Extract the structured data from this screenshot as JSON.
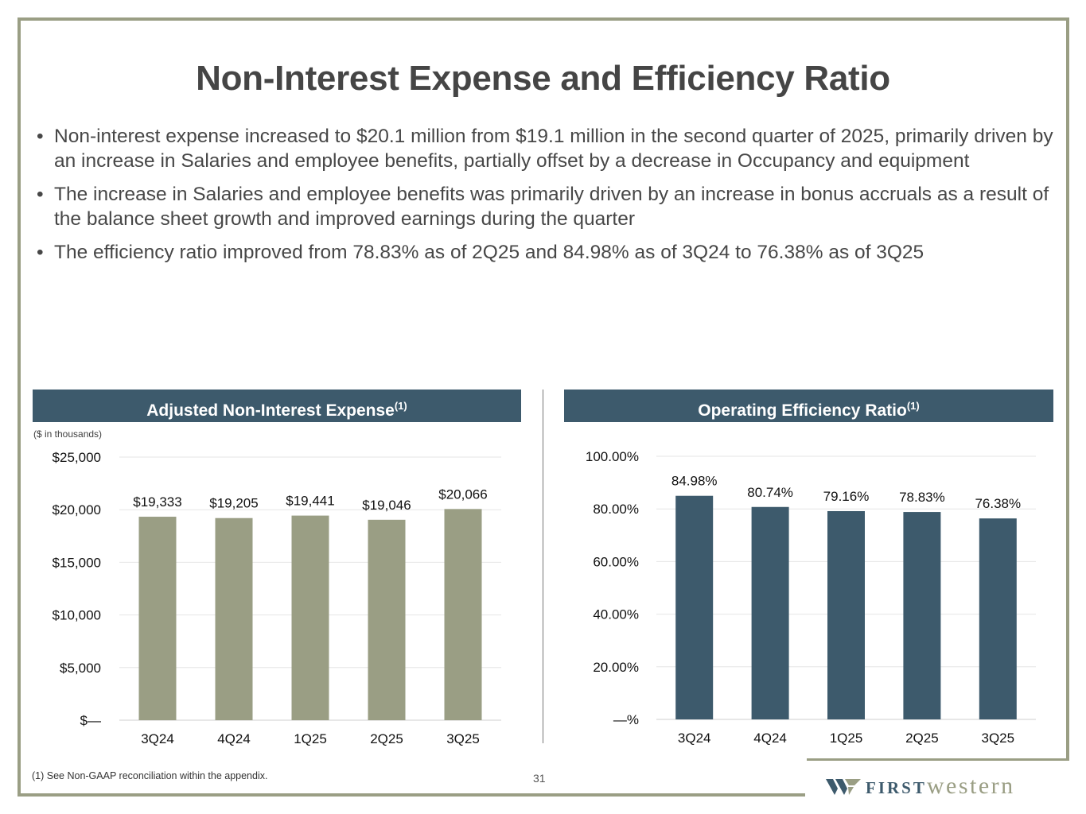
{
  "slide": {
    "title": "Non-Interest Expense and Efficiency Ratio",
    "bullets": [
      "Non-interest expense increased to $20.1 million from $19.1 million in the second quarter of 2025, primarily driven by an increase in Salaries and employee benefits, partially offset by a decrease in Occupancy and equipment",
      "The increase in Salaries and employee benefits was primarily driven by an increase in bonus accruals as a result of the balance sheet growth and improved earnings during the quarter",
      "The efficiency ratio improved from 78.83% as of 2Q25 and 84.98% as of 3Q24 to 76.38% as of 3Q25"
    ],
    "left_panel": {
      "title": "Adjusted Non-Interest Expense",
      "superscript": "(1)",
      "units_note": "($ in thousands)"
    },
    "right_panel": {
      "title": "Operating Efficiency Ratio",
      "superscript": "(1)"
    },
    "footnote": "(1)  See Non-GAAP reconciliation within the appendix.",
    "page_number": "31",
    "logo": {
      "first": "FIRST",
      "western": "western"
    }
  },
  "colors": {
    "frame": "#9a9e84",
    "header": "#3d5a6c",
    "bar_expense": "#9a9e84",
    "bar_ratio": "#3d5a6c"
  },
  "chart_data": [
    {
      "type": "bar",
      "title": "Adjusted Non-Interest Expense",
      "ylabel": "($ in thousands)",
      "categories": [
        "3Q24",
        "4Q24",
        "1Q25",
        "2Q25",
        "3Q25"
      ],
      "values": [
        19333,
        19205,
        19441,
        19046,
        20066
      ],
      "value_labels": [
        "$19,333",
        "$19,205",
        "$19,441",
        "$19,046",
        "$20,066"
      ],
      "ylim": [
        0,
        25000
      ],
      "yticks": [
        0,
        5000,
        10000,
        15000,
        20000,
        25000
      ],
      "ytick_labels": [
        "$—",
        "$5,000",
        "$10,000",
        "$15,000",
        "$20,000",
        "$25,000"
      ],
      "grid": true
    },
    {
      "type": "bar",
      "title": "Operating Efficiency Ratio",
      "categories": [
        "3Q24",
        "4Q24",
        "1Q25",
        "2Q25",
        "3Q25"
      ],
      "values": [
        84.98,
        80.74,
        79.16,
        78.83,
        76.38
      ],
      "value_labels": [
        "84.98%",
        "80.74%",
        "79.16%",
        "78.83%",
        "76.38%"
      ],
      "ylim": [
        0,
        100
      ],
      "yticks": [
        0,
        20,
        40,
        60,
        80,
        100
      ],
      "ytick_labels": [
        "—%",
        "20.00%",
        "40.00%",
        "60.00%",
        "80.00%",
        "100.00%"
      ],
      "grid": true
    }
  ]
}
